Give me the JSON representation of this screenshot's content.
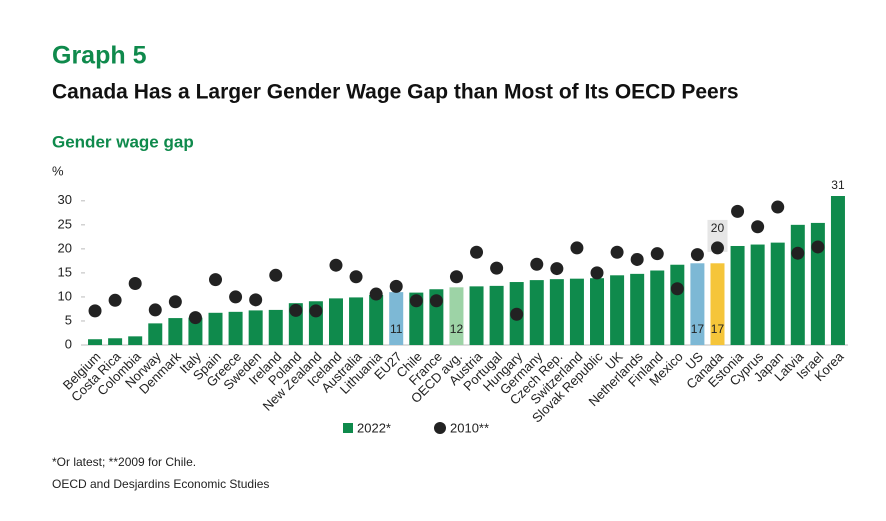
{
  "chart_data": {
    "type": "bar",
    "title": "Graph 5",
    "subtitle": "Canada Has a Larger Gender Wage Gap than Most of Its OECD Peers",
    "chart_title": "Gender wage gap",
    "y_label": "%",
    "categories": [
      "Belgium",
      "Costa Rica",
      "Colombia",
      "Norway",
      "Denmark",
      "Italy",
      "Spain",
      "Greece",
      "Sweden",
      "Ireland",
      "Poland",
      "New Zealand",
      "Iceland",
      "Australia",
      "Lithuania",
      "EU27",
      "Chile",
      "France",
      "OECD avg.",
      "Austria",
      "Portugal",
      "Hungary",
      "Germany",
      "Czech Rep.",
      "Switzerland",
      "Slovak Republic",
      "UK",
      "Netherlands",
      "Finland",
      "Mexico",
      "US",
      "Canada",
      "Estonia",
      "Cyprus",
      "Japan",
      "Latvia",
      "Israel",
      "Korea"
    ],
    "series": [
      {
        "name": "2022*",
        "color": "#0f8a4c",
        "bar_colors": [
          null,
          null,
          null,
          null,
          null,
          null,
          null,
          null,
          null,
          null,
          null,
          null,
          null,
          null,
          null,
          "#7db8d5",
          null,
          null,
          "#9dd3a6",
          null,
          null,
          null,
          null,
          null,
          null,
          null,
          null,
          null,
          null,
          null,
          "#7db8d5",
          "#f5c53a",
          null,
          null,
          null,
          null,
          null,
          null
        ],
        "values": [
          1.2,
          1.4,
          1.8,
          4.5,
          5.6,
          5.7,
          6.7,
          6.9,
          7.2,
          7.3,
          8.7,
          9.1,
          9.7,
          9.9,
          10.4,
          11,
          10.9,
          11.6,
          12,
          12.2,
          12.3,
          13.1,
          13.5,
          13.7,
          13.8,
          13.9,
          14.5,
          14.8,
          15.5,
          16.7,
          17,
          17,
          20.6,
          20.9,
          21.3,
          25,
          25.4,
          31
        ],
        "value_labels": [
          null,
          null,
          null,
          null,
          null,
          null,
          null,
          null,
          null,
          null,
          null,
          null,
          null,
          null,
          null,
          "11",
          null,
          null,
          "12",
          null,
          null,
          null,
          null,
          null,
          null,
          null,
          null,
          null,
          null,
          null,
          "17",
          "17",
          null,
          null,
          null,
          null,
          null,
          "31"
        ]
      },
      {
        "name": "2010**",
        "color": "#222222",
        "kind": "dot",
        "values": [
          7.1,
          9.3,
          12.8,
          7.3,
          9.0,
          5.7,
          13.6,
          10.0,
          9.4,
          14.5,
          7.2,
          7.1,
          16.6,
          14.2,
          10.6,
          12.2,
          9.2,
          9.2,
          14.2,
          19.3,
          16.0,
          6.4,
          16.8,
          15.9,
          20.2,
          15.0,
          19.3,
          17.8,
          19.0,
          11.7,
          18.8,
          20.2,
          27.8,
          24.6,
          28.7,
          19.1,
          20.4,
          null
        ],
        "value_labels": [
          null,
          null,
          null,
          null,
          null,
          null,
          null,
          null,
          null,
          null,
          null,
          null,
          null,
          null,
          null,
          null,
          null,
          null,
          null,
          null,
          null,
          null,
          null,
          null,
          null,
          null,
          null,
          null,
          null,
          null,
          null,
          "20",
          null,
          null,
          null,
          null,
          null,
          null
        ]
      }
    ],
    "ylim": [
      0,
      31
    ],
    "yticks": [
      0,
      5,
      10,
      15,
      20,
      25,
      30
    ],
    "footnote": "*Or latest; **2009 for Chile.",
    "source": "OECD and Desjardins Economic Studies"
  }
}
